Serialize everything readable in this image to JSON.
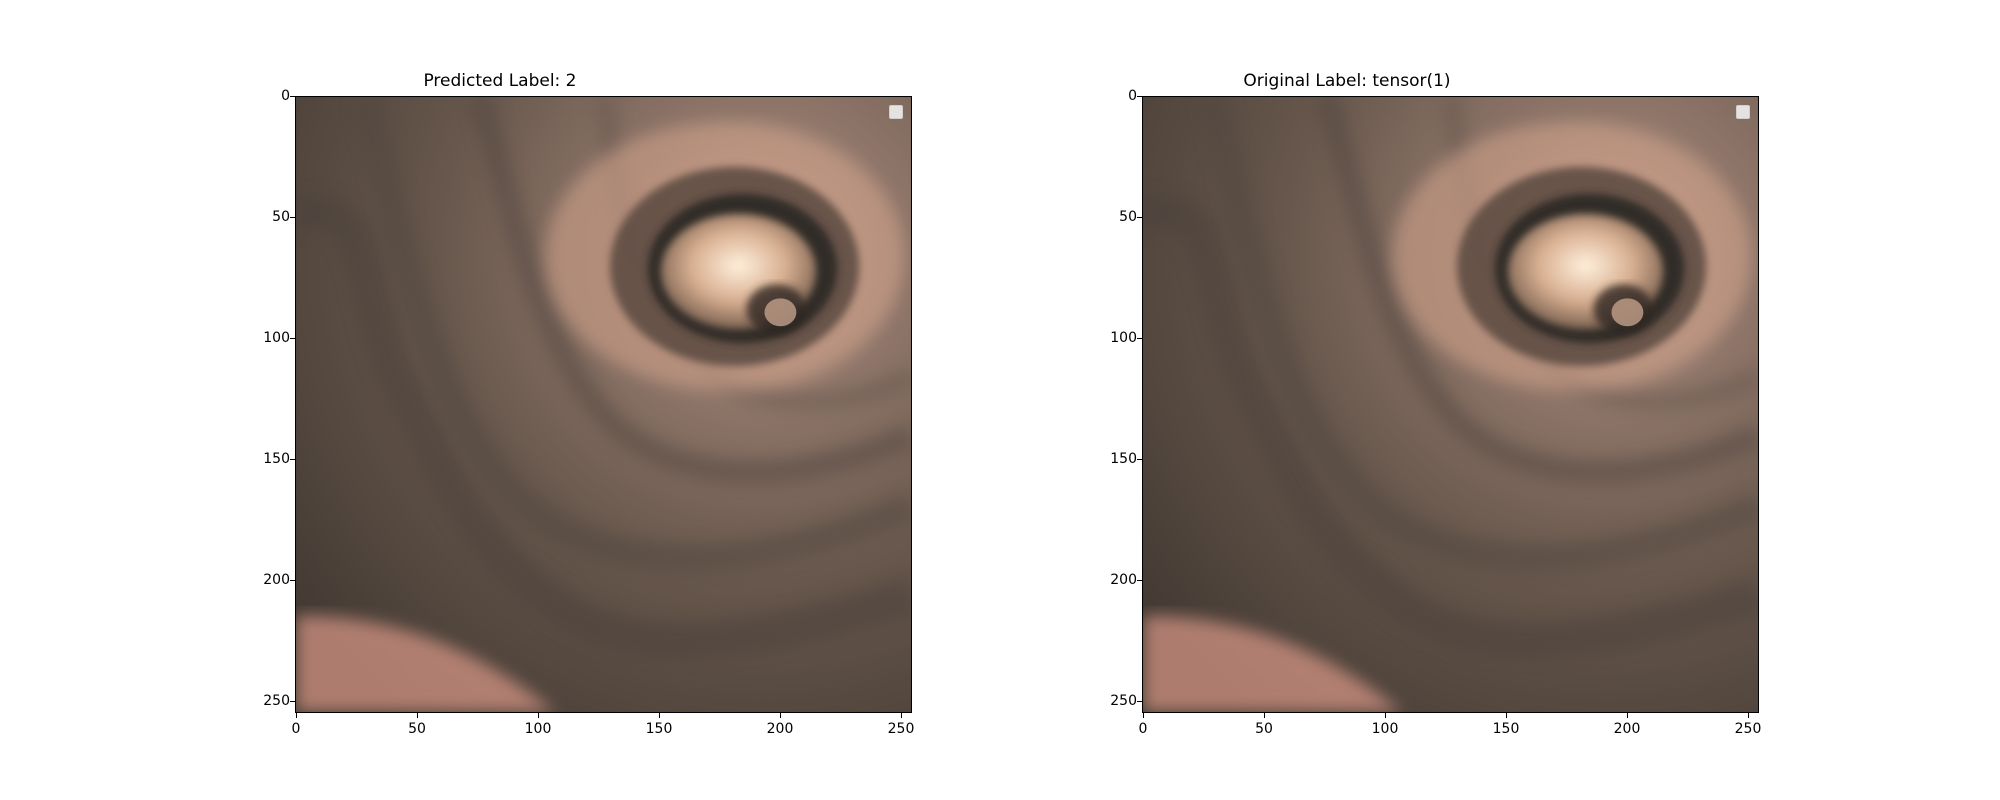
{
  "figure": {
    "panels": [
      {
        "title": "Predicted Label: 2",
        "x_ticks": [
          "0",
          "50",
          "100",
          "150",
          "200",
          "250"
        ],
        "y_ticks": [
          "0",
          "50",
          "100",
          "150",
          "200",
          "250"
        ]
      },
      {
        "title": "Original Label: tensor(1)",
        "x_ticks": [
          "0",
          "50",
          "100",
          "150",
          "200",
          "250"
        ],
        "y_ticks": [
          "0",
          "50",
          "100",
          "150",
          "200",
          "250"
        ]
      }
    ]
  },
  "image": {
    "description_palette": {
      "tissue_dark": "#3e3730",
      "tissue_mid": "#76675c",
      "tissue_warm": "#a88b82",
      "lumen_glow": "#f4d7bd",
      "lumen_shadow": "#2d2722",
      "lower_pink": "#e7a08f"
    }
  }
}
